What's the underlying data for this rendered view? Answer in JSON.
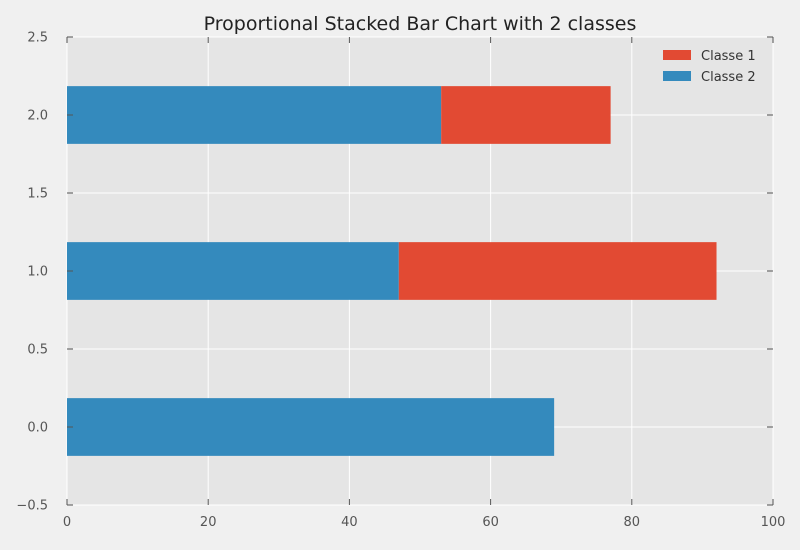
{
  "chart_data": {
    "type": "bar",
    "orientation": "horizontal",
    "stacked": true,
    "title": "Proportional Stacked Bar Chart with 2 classes",
    "xlabel": "",
    "ylabel": "",
    "xlim": [
      0,
      100
    ],
    "ylim": [
      -0.5,
      2.5
    ],
    "x_ticks": [
      "0",
      "20",
      "40",
      "60",
      "80",
      "100"
    ],
    "y_ticks": [
      "−0.5",
      "0.0",
      "0.5",
      "1.0",
      "1.5",
      "2.0",
      "2.5"
    ],
    "y": [
      0,
      1,
      2
    ],
    "bar_height": 0.37,
    "series": [
      {
        "name": "Classe 2",
        "color": "#348abd",
        "values": [
          69,
          47,
          53
        ]
      },
      {
        "name": "Classe 1",
        "color": "#e24a33",
        "values": [
          0,
          45,
          24
        ]
      }
    ],
    "legend": {
      "placement": "top-right",
      "entries": [
        {
          "label": "Classe 1",
          "color": "#e24a33"
        },
        {
          "label": "Classe 2",
          "color": "#348abd"
        }
      ]
    },
    "grid": true,
    "background_color": "#e5e5e5",
    "grid_color": "#ffffff"
  }
}
